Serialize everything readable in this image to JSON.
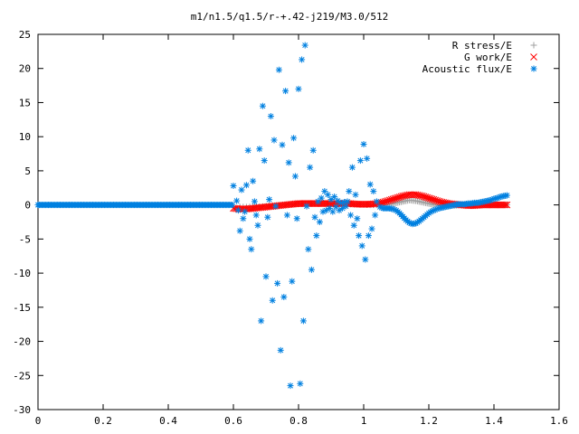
{
  "chart_data": {
    "type": "scatter",
    "title": "m1/n1.5/q1.5/r-+.42-j219/M3.0/512",
    "xlabel": "",
    "ylabel": "",
    "xlim": [
      0,
      1.6
    ],
    "ylim": [
      -30,
      25
    ],
    "xticks": [
      "0",
      "0.2",
      "0.4",
      "0.6",
      "0.8",
      "1",
      "1.2",
      "1.4",
      "1.6"
    ],
    "yticks": [
      "25",
      "20",
      "15",
      "10",
      "5",
      "0",
      "-5",
      "-10",
      "-15",
      "-20",
      "-25",
      "-30"
    ],
    "grid": false,
    "legend_position": "top-right",
    "series": [
      {
        "name": "R stress/E",
        "marker": "+",
        "color": "#a0a0a0",
        "points": [
          [
            0.62,
            -0.3
          ],
          [
            0.66,
            -0.3
          ],
          [
            0.7,
            -0.2
          ],
          [
            0.74,
            -0.1
          ],
          [
            0.78,
            0.1
          ],
          [
            0.82,
            0.2
          ],
          [
            0.86,
            0.2
          ],
          [
            0.9,
            0.2
          ],
          [
            0.94,
            0.1
          ],
          [
            0.98,
            0.1
          ],
          [
            1.02,
            0.0
          ],
          [
            1.06,
            0.0
          ],
          [
            1.08,
            0.1
          ],
          [
            1.1,
            0.3
          ],
          [
            1.12,
            0.5
          ],
          [
            1.14,
            0.7
          ],
          [
            1.16,
            0.6
          ],
          [
            1.18,
            0.4
          ],
          [
            1.2,
            0.2
          ],
          [
            1.22,
            0.0
          ],
          [
            1.24,
            -0.1
          ],
          [
            1.26,
            -0.1
          ],
          [
            1.28,
            -0.1
          ],
          [
            1.3,
            0.0
          ],
          [
            1.32,
            0.0
          ],
          [
            1.34,
            0.0
          ],
          [
            1.36,
            0.0
          ],
          [
            1.38,
            0.0
          ],
          [
            1.4,
            0.0
          ],
          [
            1.42,
            0.0
          ],
          [
            1.44,
            0.0
          ]
        ]
      },
      {
        "name": "G work/E",
        "marker": "x",
        "color": "#ff0000",
        "points": [
          [
            0.6,
            -0.5
          ],
          [
            0.62,
            -0.6
          ],
          [
            0.64,
            -0.6
          ],
          [
            0.66,
            -0.5
          ],
          [
            0.68,
            -0.4
          ],
          [
            0.7,
            -0.3
          ],
          [
            0.72,
            -0.2
          ],
          [
            0.74,
            -0.1
          ],
          [
            0.76,
            0.0
          ],
          [
            0.78,
            0.1
          ],
          [
            0.8,
            0.2
          ],
          [
            0.82,
            0.2
          ],
          [
            0.84,
            0.2
          ],
          [
            0.86,
            0.2
          ],
          [
            0.88,
            0.2
          ],
          [
            0.9,
            0.2
          ],
          [
            0.92,
            0.2
          ],
          [
            0.94,
            0.2
          ],
          [
            0.96,
            0.2
          ],
          [
            0.98,
            0.1
          ],
          [
            1.0,
            0.1
          ],
          [
            1.02,
            0.1
          ],
          [
            1.04,
            0.2
          ],
          [
            1.06,
            0.4
          ],
          [
            1.08,
            0.7
          ],
          [
            1.1,
            1.0
          ],
          [
            1.12,
            1.3
          ],
          [
            1.14,
            1.5
          ],
          [
            1.16,
            1.5
          ],
          [
            1.18,
            1.3
          ],
          [
            1.2,
            1.0
          ],
          [
            1.22,
            0.7
          ],
          [
            1.24,
            0.4
          ],
          [
            1.26,
            0.2
          ],
          [
            1.28,
            0.1
          ],
          [
            1.3,
            0.0
          ],
          [
            1.32,
            -0.1
          ],
          [
            1.34,
            -0.1
          ],
          [
            1.36,
            0.0
          ],
          [
            1.38,
            0.0
          ],
          [
            1.4,
            0.0
          ],
          [
            1.42,
            0.0
          ],
          [
            1.44,
            0.0
          ]
        ]
      },
      {
        "name": "Acoustic flux/E",
        "marker": "*",
        "color": "#0080e0",
        "points": [
          [
            0.6,
            2.8
          ],
          [
            0.61,
            0.6
          ],
          [
            0.615,
            -0.8
          ],
          [
            0.62,
            -3.8
          ],
          [
            0.625,
            2.2
          ],
          [
            0.63,
            -2.0
          ],
          [
            0.635,
            -1.0
          ],
          [
            0.64,
            2.9
          ],
          [
            0.645,
            8.0
          ],
          [
            0.65,
            -5.0
          ],
          [
            0.655,
            -6.5
          ],
          [
            0.66,
            3.5
          ],
          [
            0.665,
            0.5
          ],
          [
            0.67,
            -1.5
          ],
          [
            0.675,
            -3.0
          ],
          [
            0.68,
            8.2
          ],
          [
            0.685,
            -17.0
          ],
          [
            0.69,
            14.5
          ],
          [
            0.695,
            6.5
          ],
          [
            0.7,
            -10.5
          ],
          [
            0.705,
            -1.8
          ],
          [
            0.71,
            0.8
          ],
          [
            0.715,
            13.0
          ],
          [
            0.72,
            -14.0
          ],
          [
            0.725,
            9.5
          ],
          [
            0.73,
            -0.2
          ],
          [
            0.735,
            -11.5
          ],
          [
            0.74,
            19.8
          ],
          [
            0.745,
            -21.3
          ],
          [
            0.75,
            8.8
          ],
          [
            0.755,
            -13.5
          ],
          [
            0.76,
            16.7
          ],
          [
            0.765,
            -1.5
          ],
          [
            0.77,
            6.2
          ],
          [
            0.775,
            -26.5
          ],
          [
            0.78,
            -11.2
          ],
          [
            0.785,
            9.8
          ],
          [
            0.79,
            4.2
          ],
          [
            0.795,
            -2.0
          ],
          [
            0.8,
            17.0
          ],
          [
            0.805,
            -26.2
          ],
          [
            0.81,
            21.3
          ],
          [
            0.815,
            -17.0
          ],
          [
            0.82,
            23.4
          ],
          [
            0.825,
            -0.2
          ],
          [
            0.83,
            -6.5
          ],
          [
            0.835,
            5.5
          ],
          [
            0.84,
            -9.5
          ],
          [
            0.845,
            8.0
          ],
          [
            0.85,
            -1.8
          ],
          [
            0.855,
            -4.5
          ],
          [
            0.86,
            0.5
          ],
          [
            0.865,
            -2.5
          ],
          [
            0.87,
            1.0
          ],
          [
            0.875,
            -1.0
          ],
          [
            0.88,
            2.0
          ],
          [
            0.885,
            -0.8
          ],
          [
            0.89,
            1.5
          ],
          [
            0.895,
            -0.5
          ],
          [
            0.9,
            0.8
          ],
          [
            0.905,
            -1.0
          ],
          [
            0.91,
            1.2
          ],
          [
            0.915,
            -0.3
          ],
          [
            0.92,
            0.6
          ],
          [
            0.925,
            -0.8
          ],
          [
            0.93,
            0.3
          ],
          [
            0.935,
            -0.5
          ],
          [
            0.94,
            0.4
          ],
          [
            0.945,
            -0.2
          ],
          [
            0.95,
            0.5
          ],
          [
            0.955,
            2.0
          ],
          [
            0.96,
            -1.5
          ],
          [
            0.965,
            5.5
          ],
          [
            0.97,
            -3.0
          ],
          [
            0.975,
            1.5
          ],
          [
            0.98,
            -2.0
          ],
          [
            0.985,
            -4.5
          ],
          [
            0.99,
            6.5
          ],
          [
            0.995,
            -6.0
          ],
          [
            1.0,
            8.9
          ],
          [
            1.005,
            -8.0
          ],
          [
            1.01,
            6.8
          ],
          [
            1.015,
            -4.5
          ],
          [
            1.02,
            3.0
          ],
          [
            1.025,
            -3.5
          ],
          [
            1.03,
            2.0
          ],
          [
            1.035,
            -1.5
          ],
          [
            1.04,
            0.5
          ],
          [
            1.05,
            -0.3
          ],
          [
            1.06,
            -0.5
          ],
          [
            1.07,
            -0.5
          ],
          [
            1.08,
            -0.5
          ],
          [
            1.09,
            -0.6
          ],
          [
            1.1,
            -0.8
          ],
          [
            1.11,
            -1.2
          ],
          [
            1.12,
            -1.7
          ],
          [
            1.13,
            -2.2
          ],
          [
            1.14,
            -2.6
          ],
          [
            1.15,
            -2.8
          ],
          [
            1.16,
            -2.7
          ],
          [
            1.17,
            -2.4
          ],
          [
            1.18,
            -2.0
          ],
          [
            1.19,
            -1.6
          ],
          [
            1.2,
            -1.2
          ],
          [
            1.21,
            -0.9
          ],
          [
            1.22,
            -0.7
          ],
          [
            1.23,
            -0.5
          ],
          [
            1.24,
            -0.4
          ],
          [
            1.25,
            -0.3
          ],
          [
            1.26,
            -0.2
          ],
          [
            1.27,
            -0.1
          ],
          [
            1.28,
            0.0
          ],
          [
            1.29,
            0.1
          ],
          [
            1.3,
            0.1
          ],
          [
            1.31,
            0.1
          ],
          [
            1.32,
            0.2
          ],
          [
            1.33,
            0.2
          ],
          [
            1.34,
            0.3
          ],
          [
            1.35,
            0.3
          ],
          [
            1.36,
            0.4
          ],
          [
            1.37,
            0.5
          ],
          [
            1.38,
            0.6
          ],
          [
            1.39,
            0.7
          ],
          [
            1.4,
            0.9
          ],
          [
            1.41,
            1.0
          ],
          [
            1.42,
            1.2
          ],
          [
            1.43,
            1.3
          ],
          [
            1.44,
            1.4
          ]
        ]
      }
    ]
  }
}
